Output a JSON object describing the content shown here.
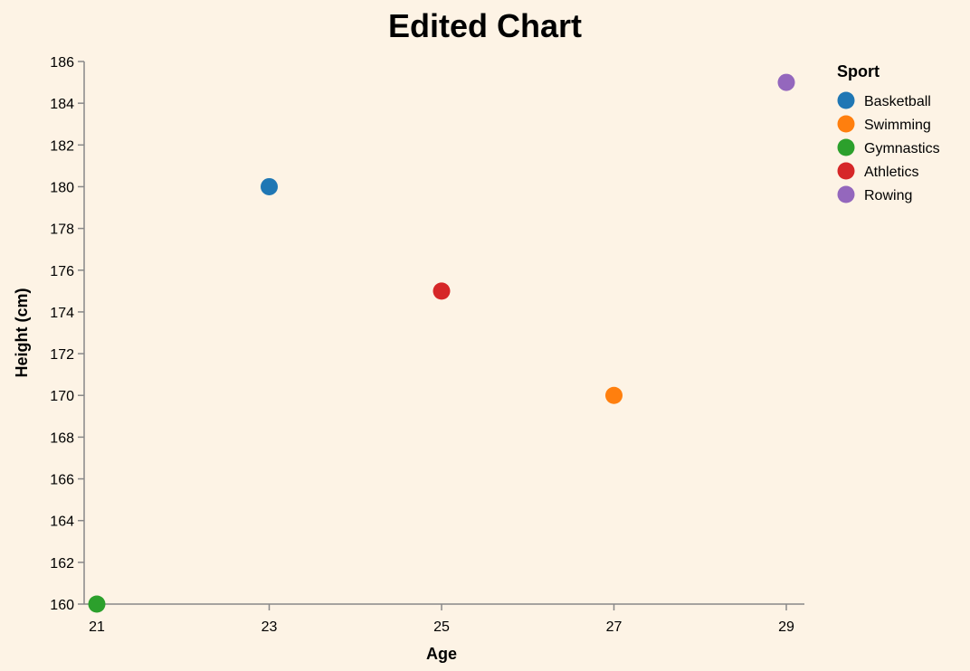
{
  "chart_data": {
    "type": "scatter",
    "title": "Edited Chart",
    "xlabel": "Age",
    "ylabel": "Height (cm)",
    "xlim": [
      21,
      29
    ],
    "ylim": [
      160,
      186
    ],
    "x_ticks": [
      21,
      23,
      25,
      27,
      29
    ],
    "y_ticks": [
      160,
      162,
      164,
      166,
      168,
      170,
      172,
      174,
      176,
      178,
      180,
      182,
      184,
      186
    ],
    "grid": false,
    "legend": {
      "title": "Sport",
      "placement": "right"
    },
    "series": [
      {
        "name": "Basketball",
        "color": "#1f77b4",
        "points": [
          {
            "x": 23,
            "y": 180
          }
        ]
      },
      {
        "name": "Swimming",
        "color": "#ff7f0e",
        "points": [
          {
            "x": 27,
            "y": 170
          }
        ]
      },
      {
        "name": "Gymnastics",
        "color": "#2ca02c",
        "points": [
          {
            "x": 21,
            "y": 160
          }
        ]
      },
      {
        "name": "Athletics",
        "color": "#d62728",
        "points": [
          {
            "x": 25,
            "y": 175
          }
        ]
      },
      {
        "name": "Rowing",
        "color": "#9467bd",
        "points": [
          {
            "x": 29,
            "y": 185
          }
        ]
      }
    ]
  }
}
